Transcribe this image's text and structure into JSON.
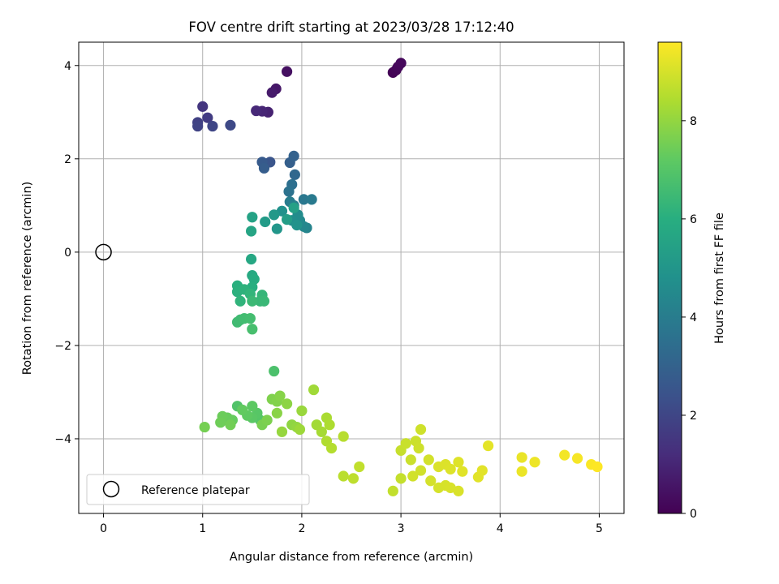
{
  "chart_data": {
    "type": "scatter",
    "title": "FOV centre drift starting at 2023/03/28 17:12:40",
    "xlabel": "Angular distance from reference (arcmin)",
    "ylabel": "Rotation from reference (arcmin)",
    "xlim": [
      -0.25,
      5.25
    ],
    "ylim": [
      -5.6,
      4.5
    ],
    "xticks": [
      0,
      1,
      2,
      3,
      4,
      5
    ],
    "yticks": [
      -4,
      -2,
      0,
      2,
      4
    ],
    "xtick_labels": [
      "0",
      "1",
      "2",
      "3",
      "4",
      "5"
    ],
    "ytick_labels": [
      "−4",
      "−2",
      "0",
      "2",
      "4"
    ],
    "grid": true,
    "legend": {
      "position": "lower-left",
      "label": "Reference platepar"
    },
    "reference_point": {
      "x": 0,
      "y": 0
    },
    "colorbar": {
      "label": "Hours from first FF file",
      "colormap": "viridis",
      "range": [
        0,
        9.6
      ],
      "ticks": [
        0,
        2,
        4,
        6,
        8
      ],
      "tick_labels": [
        "0",
        "2",
        "4",
        "6",
        "8"
      ]
    },
    "points": [
      [
        2.92,
        3.85,
        0.05
      ],
      [
        2.95,
        3.9,
        0.1
      ],
      [
        2.97,
        3.97,
        0.15
      ],
      [
        3.0,
        4.05,
        0.2
      ],
      [
        1.85,
        3.87,
        0.4
      ],
      [
        1.74,
        3.5,
        0.6
      ],
      [
        1.7,
        3.42,
        0.7
      ],
      [
        1.66,
        3.0,
        0.9
      ],
      [
        1.6,
        3.02,
        1.0
      ],
      [
        1.54,
        3.03,
        1.1
      ],
      [
        1.0,
        3.12,
        1.5
      ],
      [
        1.05,
        2.88,
        1.7
      ],
      [
        0.95,
        2.78,
        1.8
      ],
      [
        0.95,
        2.7,
        1.9
      ],
      [
        1.1,
        2.7,
        2.0
      ],
      [
        1.28,
        2.72,
        2.1
      ],
      [
        1.68,
        1.93,
        2.5
      ],
      [
        1.6,
        1.93,
        2.7
      ],
      [
        1.62,
        1.8,
        2.8
      ],
      [
        1.88,
        1.92,
        2.9
      ],
      [
        1.92,
        2.06,
        3.0
      ],
      [
        1.93,
        1.66,
        3.2
      ],
      [
        1.9,
        1.45,
        3.5
      ],
      [
        1.87,
        1.3,
        3.6
      ],
      [
        2.02,
        1.13,
        3.8
      ],
      [
        2.1,
        1.13,
        3.9
      ],
      [
        1.88,
        1.08,
        4.0
      ],
      [
        1.92,
        1.0,
        4.1
      ],
      [
        2.05,
        0.52,
        4.3
      ],
      [
        2.02,
        0.55,
        4.4
      ],
      [
        1.98,
        0.68,
        4.5
      ],
      [
        1.96,
        0.8,
        4.6
      ],
      [
        1.9,
        0.68,
        4.7
      ],
      [
        1.8,
        0.88,
        4.8
      ],
      [
        1.95,
        0.58,
        4.9
      ],
      [
        1.75,
        0.5,
        5.0
      ],
      [
        1.72,
        0.8,
        5.1
      ],
      [
        1.63,
        0.65,
        5.2
      ],
      [
        1.85,
        0.7,
        5.3
      ],
      [
        1.92,
        0.95,
        5.4
      ],
      [
        1.5,
        0.75,
        5.5
      ],
      [
        1.49,
        0.45,
        5.6
      ],
      [
        1.49,
        -0.15,
        5.7
      ],
      [
        1.5,
        -0.5,
        5.8
      ],
      [
        1.52,
        -0.58,
        5.9
      ],
      [
        1.5,
        -0.75,
        6.0
      ],
      [
        1.35,
        -0.72,
        6.05
      ],
      [
        1.35,
        -0.85,
        6.1
      ],
      [
        1.42,
        -0.8,
        6.15
      ],
      [
        1.38,
        -1.05,
        6.2
      ],
      [
        1.48,
        -0.9,
        6.25
      ],
      [
        1.6,
        -0.92,
        6.3
      ],
      [
        1.58,
        -1.05,
        6.35
      ],
      [
        1.62,
        -1.05,
        6.4
      ],
      [
        1.5,
        -1.05,
        6.45
      ],
      [
        1.38,
        -1.45,
        6.5
      ],
      [
        1.35,
        -1.5,
        6.55
      ],
      [
        1.42,
        -1.42,
        6.6
      ],
      [
        1.48,
        -1.42,
        6.65
      ],
      [
        1.5,
        -1.65,
        6.7
      ],
      [
        1.72,
        -2.55,
        6.8
      ],
      [
        1.35,
        -3.3,
        6.9
      ],
      [
        1.58,
        -3.6,
        7.0
      ],
      [
        1.55,
        -3.45,
        7.05
      ],
      [
        1.5,
        -3.55,
        7.1
      ],
      [
        1.5,
        -3.3,
        7.15
      ],
      [
        1.45,
        -3.5,
        7.2
      ],
      [
        1.4,
        -3.38,
        7.25
      ],
      [
        1.3,
        -3.6,
        7.3
      ],
      [
        1.25,
        -3.55,
        7.35
      ],
      [
        1.2,
        -3.52,
        7.4
      ],
      [
        1.18,
        -3.65,
        7.45
      ],
      [
        1.28,
        -3.7,
        7.5
      ],
      [
        1.02,
        -3.75,
        7.55
      ],
      [
        1.6,
        -3.7,
        7.6
      ],
      [
        1.65,
        -3.6,
        7.65
      ],
      [
        1.7,
        -3.15,
        7.7
      ],
      [
        1.75,
        -3.2,
        7.75
      ],
      [
        1.78,
        -3.08,
        7.8
      ],
      [
        1.75,
        -3.45,
        7.85
      ],
      [
        1.85,
        -3.25,
        7.9
      ],
      [
        1.9,
        -3.7,
        7.95
      ],
      [
        1.95,
        -3.75,
        8.0
      ],
      [
        1.8,
        -3.85,
        8.05
      ],
      [
        2.0,
        -3.4,
        8.1
      ],
      [
        1.98,
        -3.8,
        8.15
      ],
      [
        2.12,
        -2.95,
        8.2
      ],
      [
        2.15,
        -3.7,
        8.25
      ],
      [
        2.2,
        -3.85,
        8.3
      ],
      [
        2.25,
        -3.55,
        8.35
      ],
      [
        2.28,
        -3.7,
        8.4
      ],
      [
        2.25,
        -4.05,
        8.45
      ],
      [
        2.3,
        -4.2,
        8.5
      ],
      [
        2.42,
        -3.95,
        8.55
      ],
      [
        2.42,
        -4.8,
        8.6
      ],
      [
        2.52,
        -4.85,
        8.65
      ],
      [
        2.58,
        -4.6,
        8.7
      ],
      [
        2.92,
        -5.12,
        8.72
      ],
      [
        3.0,
        -4.85,
        8.75
      ],
      [
        3.0,
        -4.25,
        8.78
      ],
      [
        3.05,
        -4.1,
        8.8
      ],
      [
        3.1,
        -4.45,
        8.83
      ],
      [
        3.15,
        -4.05,
        8.85
      ],
      [
        3.18,
        -4.2,
        8.88
      ],
      [
        3.2,
        -3.8,
        8.9
      ],
      [
        3.2,
        -4.68,
        8.92
      ],
      [
        3.12,
        -4.8,
        8.94
      ],
      [
        3.28,
        -4.45,
        8.96
      ],
      [
        3.3,
        -4.9,
        8.98
      ],
      [
        3.38,
        -5.05,
        9.0
      ],
      [
        3.45,
        -5.0,
        9.02
      ],
      [
        3.5,
        -5.05,
        9.04
      ],
      [
        3.58,
        -5.12,
        9.06
      ],
      [
        3.38,
        -4.6,
        9.08
      ],
      [
        3.45,
        -4.55,
        9.1
      ],
      [
        3.5,
        -4.65,
        9.12
      ],
      [
        3.58,
        -4.5,
        9.14
      ],
      [
        3.62,
        -4.7,
        9.16
      ],
      [
        3.78,
        -4.82,
        9.18
      ],
      [
        3.82,
        -4.68,
        9.2
      ],
      [
        3.88,
        -4.15,
        9.22
      ],
      [
        4.22,
        -4.4,
        9.3
      ],
      [
        4.22,
        -4.7,
        9.33
      ],
      [
        4.35,
        -4.5,
        9.36
      ],
      [
        4.65,
        -4.35,
        9.45
      ],
      [
        4.78,
        -4.42,
        9.5
      ],
      [
        4.92,
        -4.55,
        9.55
      ],
      [
        4.98,
        -4.6,
        9.6
      ]
    ]
  }
}
